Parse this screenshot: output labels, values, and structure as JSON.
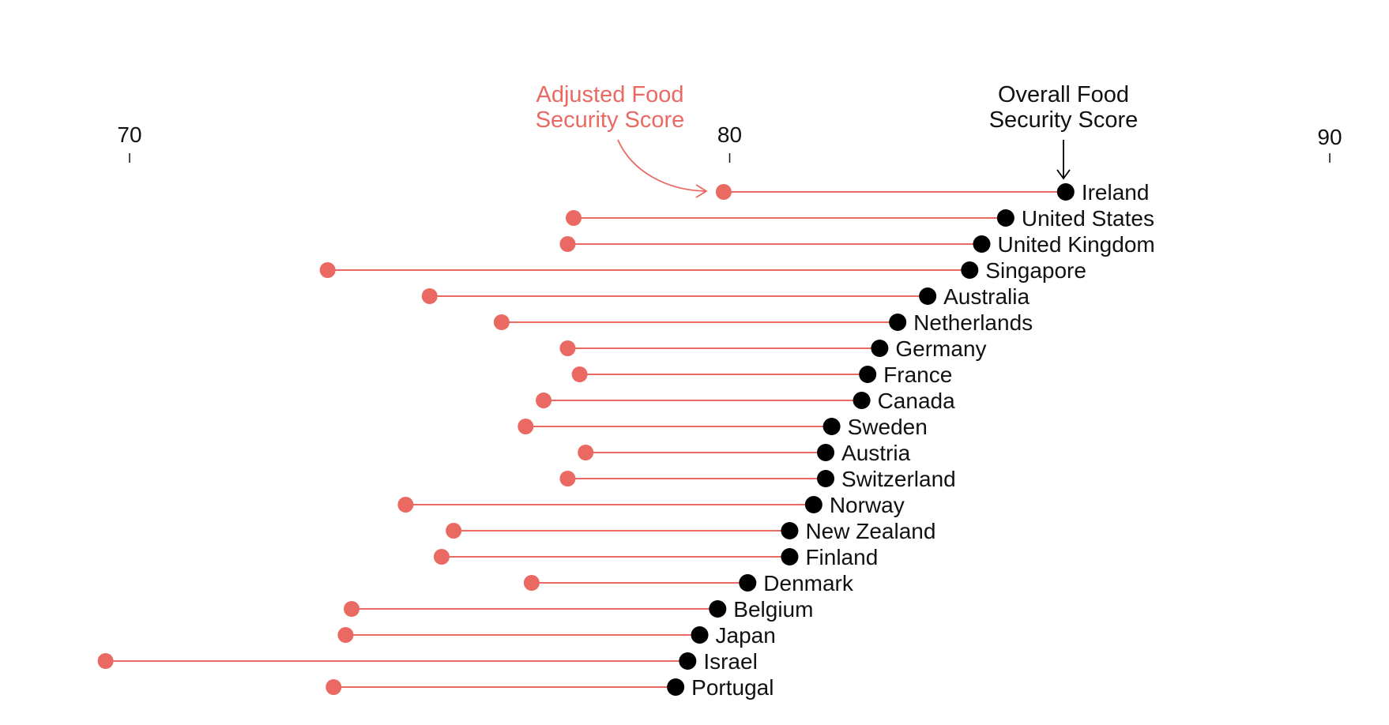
{
  "colors": {
    "adjusted": "#ea6a63",
    "overall": "#000000",
    "text": "#111111",
    "connector": "#ea6a63"
  },
  "legend": {
    "adjusted": [
      "Adjusted Food",
      "Security Score"
    ],
    "overall": [
      "Overall Food",
      "Security Score"
    ]
  },
  "chart_data": {
    "type": "dumbbell",
    "title": "",
    "xlabel": "",
    "ylabel": "",
    "xlim": [
      70,
      90
    ],
    "xticks": [
      70,
      80,
      90
    ],
    "grid": false,
    "legend_placement": "top",
    "series": [
      {
        "name": "Adjusted Food Security Score"
      },
      {
        "name": "Overall Food Security Score"
      }
    ],
    "rows": [
      {
        "country": "Ireland",
        "adjusted": 79.9,
        "overall": 85.6
      },
      {
        "country": "United States",
        "adjusted": 77.4,
        "overall": 84.6
      },
      {
        "country": "United Kingdom",
        "adjusted": 77.3,
        "overall": 84.2
      },
      {
        "country": "Singapore",
        "adjusted": 73.3,
        "overall": 84.0
      },
      {
        "country": "Australia",
        "adjusted": 75.0,
        "overall": 83.3
      },
      {
        "country": "Netherlands",
        "adjusted": 76.2,
        "overall": 82.8
      },
      {
        "country": "Germany",
        "adjusted": 77.3,
        "overall": 82.5
      },
      {
        "country": "France",
        "adjusted": 77.5,
        "overall": 82.3
      },
      {
        "country": "Canada",
        "adjusted": 76.9,
        "overall": 82.2
      },
      {
        "country": "Sweden",
        "adjusted": 76.6,
        "overall": 81.7
      },
      {
        "country": "Austria",
        "adjusted": 77.6,
        "overall": 81.6
      },
      {
        "country": "Switzerland",
        "adjusted": 77.3,
        "overall": 81.6
      },
      {
        "country": "Norway",
        "adjusted": 74.6,
        "overall": 81.4
      },
      {
        "country": "New Zealand",
        "adjusted": 75.4,
        "overall": 81.0
      },
      {
        "country": "Finland",
        "adjusted": 75.2,
        "overall": 81.0
      },
      {
        "country": "Denmark",
        "adjusted": 76.7,
        "overall": 80.3
      },
      {
        "country": "Belgium",
        "adjusted": 73.7,
        "overall": 79.8
      },
      {
        "country": "Japan",
        "adjusted": 73.6,
        "overall": 79.5
      },
      {
        "country": "Israel",
        "adjusted": 69.6,
        "overall": 79.3
      },
      {
        "country": "Portugal",
        "adjusted": 73.4,
        "overall": 79.1
      }
    ]
  }
}
